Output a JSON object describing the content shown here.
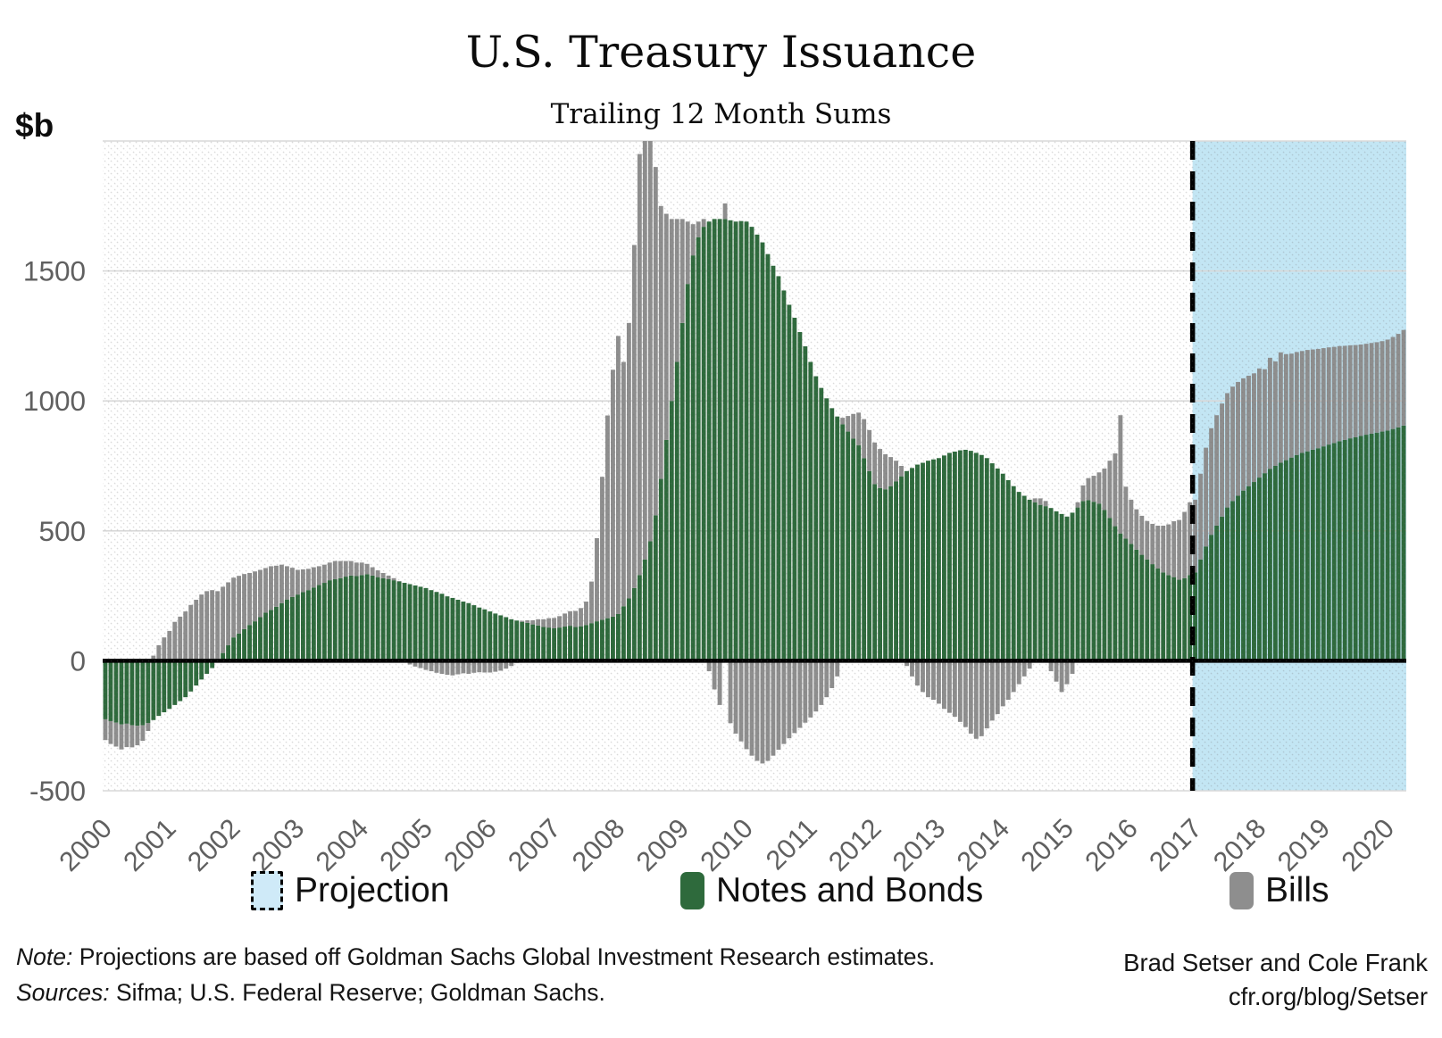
{
  "title": "U.S. Treasury Issuance",
  "subtitle": "Trailing 12 Month Sums",
  "y_axis": {
    "unit_label": "$b",
    "ticks": [
      1500,
      1000,
      500,
      0,
      -500
    ],
    "min": -500,
    "max": 2000
  },
  "x_axis": {
    "years": [
      "2000",
      "2001",
      "2002",
      "2003",
      "2004",
      "2005",
      "2006",
      "2007",
      "2008",
      "2009",
      "2010",
      "2011",
      "2012",
      "2013",
      "2014",
      "2015",
      "2016",
      "2017",
      "2018",
      "2019",
      "2020"
    ]
  },
  "legend": {
    "items": [
      {
        "label": "Projection",
        "color": "#cfeaf8",
        "style": "dashed-box"
      },
      {
        "label": "Notes and Bonds",
        "color": "#2e6a3c",
        "style": "solid"
      },
      {
        "label": "Bills",
        "color": "#8e8e8e",
        "style": "solid"
      }
    ]
  },
  "footer": {
    "note_label": "Note:",
    "note_text": " Projections are based off Goldman Sachs Global Investment Research estimates.",
    "sources_label": "Sources:",
    "sources_text": " Sifma; U.S. Federal Reserve; Goldman Sachs.",
    "credit_line1": "Brad Setser and Cole Frank",
    "credit_line2": "cfr.org/blog/Setser"
  },
  "chart_data": {
    "type": "bar",
    "stacked": true,
    "frequency": "monthly",
    "start": "2000-01",
    "end": "2020-04",
    "title": "U.S. Treasury Issuance",
    "subtitle": "Trailing 12 Month Sums",
    "ylabel": "$b",
    "ylim": [
      -500,
      2000
    ],
    "grid": "horizontal",
    "legend_position": "bottom",
    "projection_start": "2017-01",
    "projection_start_index": 204,
    "colors": {
      "notes_and_bonds": "#2e6a3c",
      "bills": "#8e8e8e",
      "projection_bg": "#c3e6f4",
      "zero_line": "#000000",
      "gridline": "#d9d9d9",
      "tick_text": "#606060",
      "divider": "#000000"
    },
    "series": [
      {
        "name": "Notes and Bonds",
        "values": [
          -225,
          -232,
          -238,
          -245,
          -242,
          -248,
          -250,
          -248,
          -240,
          -228,
          -212,
          -198,
          -185,
          -170,
          -155,
          -140,
          -118,
          -95,
          -72,
          -50,
          -28,
          -5,
          30,
          60,
          90,
          105,
          122,
          138,
          152,
          168,
          185,
          196,
          208,
          222,
          236,
          246,
          255,
          264,
          272,
          282,
          292,
          300,
          310,
          314,
          318,
          324,
          328,
          326,
          330,
          333,
          328,
          322,
          318,
          314,
          310,
          305,
          300,
          295,
          290,
          285,
          280,
          272,
          265,
          258,
          248,
          242,
          235,
          228,
          222,
          214,
          205,
          198,
          190,
          182,
          175,
          168,
          160,
          155,
          150,
          146,
          140,
          136,
          130,
          128,
          125,
          128,
          132,
          135,
          130,
          133,
          138,
          145,
          152,
          158,
          164,
          170,
          180,
          210,
          240,
          280,
          330,
          390,
          460,
          560,
          700,
          850,
          1000,
          1150,
          1300,
          1450,
          1560,
          1630,
          1670,
          1690,
          1700,
          1700,
          1700,
          1695,
          1690,
          1692,
          1690,
          1670,
          1640,
          1610,
          1565,
          1520,
          1480,
          1425,
          1370,
          1320,
          1265,
          1210,
          1150,
          1095,
          1050,
          1010,
          972,
          940,
          910,
          882,
          855,
          830,
          780,
          730,
          680,
          665,
          660,
          672,
          690,
          710,
          730,
          742,
          755,
          762,
          770,
          775,
          780,
          790,
          800,
          805,
          810,
          812,
          808,
          800,
          792,
          780,
          760,
          740,
          720,
          695,
          672,
          650,
          635,
          620,
          610,
          600,
          595,
          588,
          575,
          565,
          555,
          570,
          590,
          615,
          618,
          612,
          605,
          580,
          550,
          518,
          490,
          470,
          450,
          428,
          408,
          390,
          372,
          355,
          340,
          330,
          322,
          312,
          318,
          330,
          340,
          390,
          440,
          485,
          520,
          555,
          590,
          615,
          635,
          655,
          672,
          688,
          705,
          722,
          738,
          750,
          762,
          772,
          782,
          792,
          800,
          806,
          812,
          818,
          825,
          832,
          838,
          845,
          850,
          856,
          860,
          865,
          870,
          874,
          878,
          882,
          886,
          892,
          898,
          905
        ]
      },
      {
        "name": "Bills",
        "values": [
          -80,
          -88,
          -92,
          -96,
          -90,
          -85,
          -75,
          -60,
          -30,
          20,
          60,
          90,
          115,
          150,
          170,
          190,
          215,
          235,
          255,
          268,
          272,
          268,
          255,
          242,
          230,
          222,
          212,
          200,
          192,
          182,
          172,
          168,
          158,
          148,
          128,
          112,
          95,
          88,
          82,
          78,
          72,
          70,
          68,
          70,
          66,
          60,
          56,
          52,
          48,
          40,
          32,
          26,
          20,
          14,
          8,
          2,
          -6,
          -14,
          -22,
          -28,
          -35,
          -40,
          -46,
          -50,
          -54,
          -56,
          -52,
          -48,
          -50,
          -46,
          -44,
          -45,
          -45,
          -42,
          -38,
          -30,
          -20,
          -8,
          4,
          10,
          16,
          24,
          30,
          36,
          40,
          44,
          50,
          56,
          62,
          70,
          90,
          160,
          320,
          550,
          780,
          950,
          1070,
          940,
          1060,
          1320,
          1620,
          1660,
          1590,
          1340,
          1050,
          870,
          700,
          550,
          400,
          240,
          120,
          60,
          30,
          -40,
          -110,
          -170,
          60,
          -240,
          -280,
          -310,
          -340,
          -365,
          -385,
          -395,
          -385,
          -365,
          -342,
          -320,
          -298,
          -278,
          -258,
          -238,
          -218,
          -195,
          -170,
          -140,
          -105,
          -60,
          25,
          60,
          95,
          125,
          150,
          158,
          160,
          150,
          135,
          112,
          80,
          40,
          -20,
          -60,
          -95,
          -120,
          -140,
          -150,
          -165,
          -185,
          -200,
          -215,
          -235,
          -255,
          -280,
          -300,
          -290,
          -260,
          -230,
          -205,
          -175,
          -150,
          -120,
          -90,
          -60,
          -30,
          15,
          25,
          20,
          -40,
          -80,
          -120,
          -90,
          -50,
          20,
          60,
          85,
          100,
          120,
          160,
          220,
          280,
          455,
          200,
          170,
          155,
          150,
          148,
          155,
          165,
          180,
          195,
          215,
          230,
          255,
          280,
          280,
          330,
          380,
          410,
          425,
          435,
          440,
          440,
          438,
          432,
          425,
          418,
          420,
          400,
          428,
          402,
          425,
          408,
          400,
          396,
          392,
          390,
          386,
          382,
          378,
          374,
          370,
          366,
          362,
          358,
          355,
          352,
          350,
          349,
          348,
          348,
          350,
          354,
          360,
          368
        ]
      }
    ]
  }
}
